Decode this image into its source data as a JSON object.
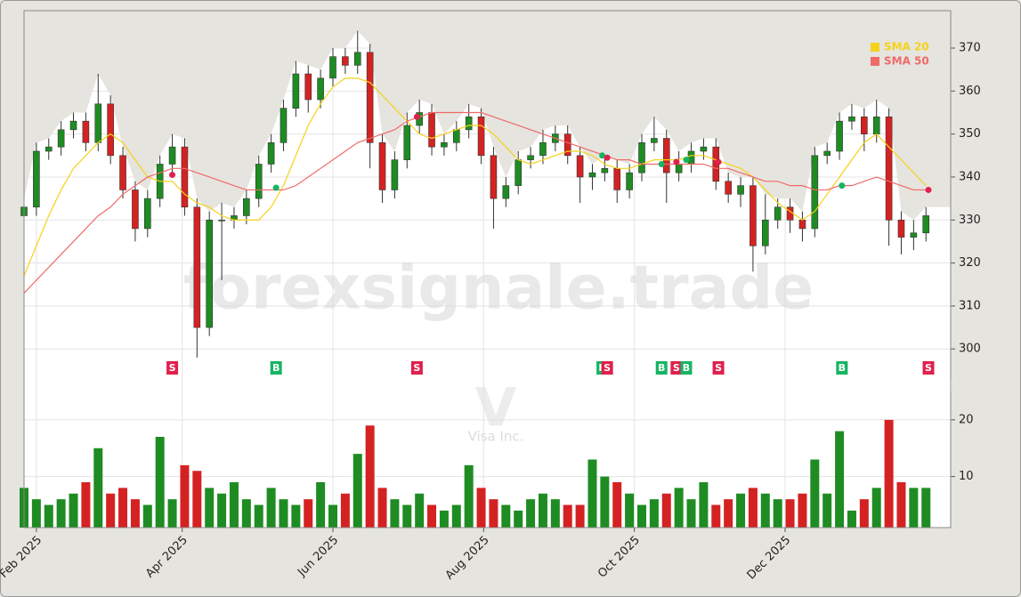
{
  "chart_data": {
    "type": "candlestick",
    "watermark": "forexsignale.trade",
    "ticker": "V",
    "company": "Visa Inc.",
    "x": [
      0,
      5,
      10,
      15,
      20,
      25,
      30,
      35,
      40,
      45,
      50,
      55,
      60,
      65,
      70,
      75,
      80,
      85,
      90,
      95,
      100,
      105,
      110,
      115,
      120,
      125,
      130,
      135,
      140,
      145,
      150,
      155,
      160,
      165,
      170,
      175,
      180,
      185,
      190,
      195,
      200,
      205,
      210,
      215,
      220,
      225,
      230,
      235,
      240,
      245,
      250,
      255,
      260,
      265,
      270,
      275,
      280,
      285,
      290,
      295,
      300,
      305,
      310,
      315,
      320,
      325,
      330,
      335,
      340,
      345,
      350,
      355,
      360,
      365
    ],
    "open": [
      331,
      333,
      346,
      347,
      351,
      353,
      348,
      357,
      345,
      337,
      328,
      335,
      343,
      347,
      333,
      305,
      330,
      330,
      331,
      335,
      343,
      348,
      356,
      364,
      358,
      363,
      368,
      366,
      369,
      348,
      337,
      344,
      352,
      355,
      347,
      348,
      351,
      354,
      345,
      335,
      338,
      344,
      345,
      348,
      350,
      345,
      340,
      341,
      342,
      337,
      341,
      348,
      349,
      341,
      343,
      346,
      347,
      339,
      336,
      338,
      324,
      330,
      333,
      330,
      328,
      345,
      346,
      353,
      354,
      350,
      354,
      330,
      326,
      327
    ],
    "high": [
      335,
      348,
      349,
      353,
      355,
      355,
      364,
      359,
      347,
      339,
      337,
      345,
      350,
      349,
      335,
      332,
      334,
      333,
      337,
      345,
      350,
      358,
      367,
      366,
      365,
      370,
      370,
      374,
      371,
      350,
      346,
      355,
      358,
      357,
      350,
      353,
      357,
      356,
      347,
      340,
      346,
      347,
      351,
      352,
      352,
      347,
      343,
      345,
      344,
      343,
      350,
      354,
      351,
      346,
      348,
      349,
      349,
      341,
      340,
      340,
      336,
      335,
      335,
      332,
      347,
      348,
      355,
      357,
      356,
      358,
      356,
      332,
      330,
      333
    ],
    "low": [
      329,
      331,
      344,
      345,
      349,
      346,
      346,
      343,
      335,
      325,
      326,
      333,
      341,
      331,
      298,
      303,
      316,
      328,
      329,
      333,
      341,
      346,
      354,
      355,
      356,
      361,
      364,
      364,
      342,
      334,
      335,
      342,
      350,
      345,
      345,
      346,
      349,
      343,
      328,
      333,
      336,
      342,
      343,
      346,
      343,
      334,
      337,
      339,
      334,
      335,
      339,
      346,
      334,
      339,
      341,
      344,
      337,
      334,
      333,
      318,
      322,
      328,
      327,
      325,
      326,
      343,
      344,
      351,
      346,
      348,
      324,
      322,
      323,
      325
    ],
    "close": [
      333,
      346,
      347,
      351,
      353,
      348,
      357,
      345,
      337,
      328,
      335,
      343,
      347,
      333,
      305,
      330,
      330,
      331,
      335,
      343,
      348,
      356,
      364,
      358,
      363,
      368,
      366,
      369,
      348,
      337,
      344,
      352,
      355,
      347,
      348,
      351,
      354,
      345,
      335,
      338,
      344,
      345,
      348,
      350,
      345,
      340,
      341,
      342,
      337,
      341,
      348,
      349,
      341,
      343,
      346,
      347,
      339,
      336,
      338,
      324,
      330,
      333,
      330,
      328,
      345,
      346,
      353,
      354,
      350,
      354,
      330,
      326,
      327,
      331
    ],
    "xlim": [
      0,
      375
    ],
    "xticks": [
      {
        "value": 5,
        "label": "Feb 2025"
      },
      {
        "value": 64,
        "label": "Apr 2025"
      },
      {
        "value": 125,
        "label": "Jun 2025"
      },
      {
        "value": 186,
        "label": "Aug 2025"
      },
      {
        "value": 247,
        "label": "Oct 2025"
      },
      {
        "value": 308,
        "label": "Dec 2025"
      }
    ],
    "ylim": [
      292.8,
      378.7
    ],
    "yticks": [
      300,
      310,
      320,
      330,
      340,
      350,
      360,
      370
    ],
    "grid": true,
    "up_color": "#1e8c22",
    "down_color": "#d42222",
    "volume": {
      "values": [
        8,
        6,
        5,
        6,
        7,
        9,
        15,
        7,
        8,
        6,
        5,
        17,
        6,
        12,
        11,
        8,
        7,
        9,
        6,
        5,
        8,
        6,
        5,
        6,
        9,
        5,
        7,
        14,
        19,
        8,
        6,
        5,
        7,
        5,
        4,
        5,
        12,
        8,
        6,
        5,
        4,
        6,
        7,
        6,
        5,
        5,
        13,
        10,
        9,
        7,
        5,
        6,
        7,
        8,
        6,
        9,
        5,
        6,
        7,
        8,
        7,
        6,
        6,
        7,
        13,
        7,
        18,
        4,
        6,
        8,
        20,
        9,
        8,
        8
      ],
      "ylim": [
        1,
        25
      ],
      "yticks": [
        10,
        20
      ]
    },
    "series": [
      {
        "name": "SMA 20",
        "color": "#f5d21a",
        "values": [
          317,
          324,
          331,
          337,
          342,
          345,
          348,
          350,
          348,
          344,
          340,
          339,
          339,
          336,
          334,
          333,
          331,
          330,
          330,
          330,
          333,
          338,
          345,
          352,
          357,
          361,
          363,
          363,
          362,
          359,
          356,
          353,
          350,
          349,
          350,
          351,
          352,
          352,
          350,
          347,
          344,
          343,
          344,
          345,
          346,
          346,
          345,
          343,
          342,
          342,
          343,
          344,
          344,
          344,
          345,
          345,
          344,
          343,
          342,
          340,
          337,
          334,
          332,
          330,
          332,
          336,
          340,
          344,
          348,
          350,
          347,
          344,
          341,
          338
        ]
      },
      {
        "name": "SMA 50",
        "color": "#f06a6a",
        "values": [
          313,
          316,
          319,
          322,
          325,
          328,
          331,
          333,
          336,
          338,
          340,
          341,
          342,
          342,
          341,
          340,
          339,
          338,
          337,
          337,
          337,
          337,
          338,
          340,
          342,
          344,
          346,
          348,
          349,
          350,
          351,
          353,
          354,
          355,
          355,
          355,
          355,
          355,
          354,
          353,
          352,
          351,
          350,
          349,
          348,
          347,
          346,
          345,
          344,
          344,
          343,
          343,
          343,
          343,
          343,
          343,
          342,
          342,
          341,
          340,
          339,
          339,
          338,
          338,
          337,
          337,
          338,
          338,
          339,
          340,
          339,
          338,
          337,
          337
        ]
      }
    ],
    "legend": "upper right",
    "signals": [
      {
        "x": 60,
        "price": 340.5,
        "label": "S"
      },
      {
        "x": 102,
        "price": 337.5,
        "label": "B"
      },
      {
        "x": 159,
        "price": 354,
        "label": "S"
      },
      {
        "x": 234,
        "price": 345,
        "label": "B"
      },
      {
        "x": 236,
        "price": 344.5,
        "label": "S"
      },
      {
        "x": 258,
        "price": 343,
        "label": "B"
      },
      {
        "x": 264,
        "price": 343.5,
        "label": "S"
      },
      {
        "x": 268,
        "price": 344,
        "label": "B"
      },
      {
        "x": 281,
        "price": 343.5,
        "label": "S"
      },
      {
        "x": 331,
        "price": 338,
        "label": "B"
      },
      {
        "x": 366,
        "price": 337,
        "label": "S"
      }
    ]
  }
}
